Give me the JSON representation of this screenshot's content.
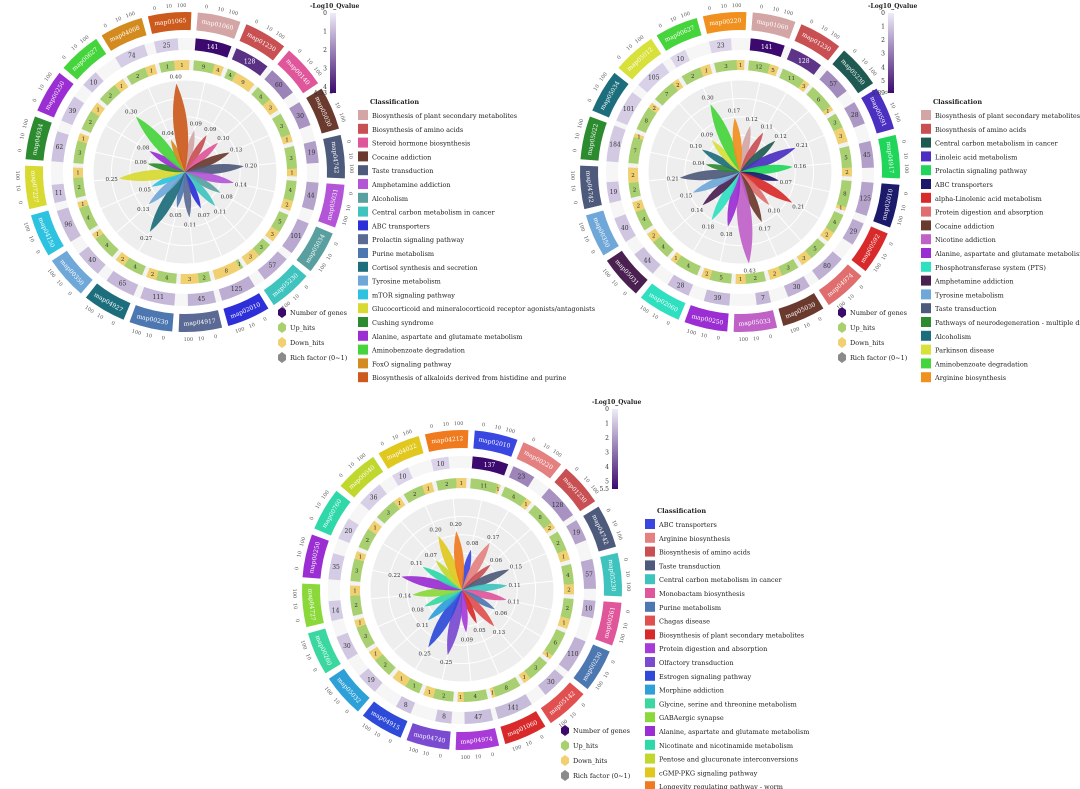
{
  "chart_data": [
    {
      "type": "circos",
      "colorbar": {
        "title": "-Log10_Qvalue",
        "ticks": [
          "0",
          "1",
          "2",
          "3",
          "4",
          "4.33"
        ],
        "min": 0,
        "max": 4.33
      },
      "legend_title": "Classification",
      "classes": [
        {
          "name": "Biosynthesis of plant secondary metabolites",
          "color": "#d3a5a5"
        },
        {
          "name": "Biosynthesis of amino acids",
          "color": "#c84f52"
        },
        {
          "name": "Steroid hormone biosynthesis",
          "color": "#e0569a"
        },
        {
          "name": "Cocaine addiction",
          "color": "#6b3a2e"
        },
        {
          "name": "Taste transduction",
          "color": "#4d5a7b"
        },
        {
          "name": "Amphetamine addiction",
          "color": "#b455d8"
        },
        {
          "name": "Alcoholism",
          "color": "#5a9f9f"
        },
        {
          "name": "Central carbon metabolism in cancer",
          "color": "#3ec3be"
        },
        {
          "name": "ABC transporters",
          "color": "#2d2fd8"
        },
        {
          "name": "Prolactin signaling pathway",
          "color": "#5b6a94"
        },
        {
          "name": "Purine metabolism",
          "color": "#4d77b0"
        },
        {
          "name": "Cortisol synthesis and secretion",
          "color": "#1d6e7d"
        },
        {
          "name": "Tyrosine metabolism",
          "color": "#6fa7d8"
        },
        {
          "name": "mTOR signaling pathway",
          "color": "#2cc2e0"
        },
        {
          "name": "Glucocorticoid and mineralocorticoid receptor agonists/antagonists",
          "color": "#d8d931"
        },
        {
          "name": "Cushing syndrome",
          "color": "#2c8a2f"
        },
        {
          "name": "Alanine, aspartate and glutamate metabolism",
          "color": "#9a2ed2"
        },
        {
          "name": "Aminobenzoate degradation",
          "color": "#45d43b"
        },
        {
          "name": "FoxO signaling pathway",
          "color": "#d38a1f"
        },
        {
          "name": "Biosynthesis of alkaloids derived from histidine and purine",
          "color": "#cc5a1d"
        }
      ],
      "sectors": [
        {
          "id": "map01060",
          "genes": 141,
          "up": 9,
          "down": 4,
          "rich": 0.09,
          "q": 4.33
        },
        {
          "id": "map01230",
          "genes": 128,
          "up": 4,
          "down": 9,
          "rich": 0.09,
          "q": 3.6
        },
        {
          "id": "map00140",
          "genes": 60,
          "up": 4,
          "down": 3,
          "rich": 0.1,
          "q": 2.0
        },
        {
          "id": "map05030",
          "genes": 30,
          "up": 3,
          "down": 1,
          "rich": 0.13,
          "q": 1.7
        },
        {
          "id": "map04742",
          "genes": 19,
          "up": 3,
          "down": 1,
          "rich": 0.2,
          "q": 1.5
        },
        {
          "id": "map05031",
          "genes": 44,
          "up": 4,
          "down": 2,
          "rich": 0.14,
          "q": 1.4
        },
        {
          "id": "map05034",
          "genes": 101,
          "up": 5,
          "down": 3,
          "rich": 0.08,
          "q": 1.3
        },
        {
          "id": "map05230",
          "genes": 57,
          "up": 3,
          "down": 3,
          "rich": 0.11,
          "q": 1.2
        },
        {
          "id": "map02010",
          "genes": 125,
          "up": 1,
          "down": 8,
          "rich": 0.07,
          "q": 1.2
        },
        {
          "id": "map04917",
          "genes": 45,
          "up": 2,
          "down": 3,
          "rich": 0.11,
          "q": 1.1
        },
        {
          "id": "map00230",
          "genes": 111,
          "up": 4,
          "down": 2,
          "rich": 0.05,
          "q": 1.0
        },
        {
          "id": "map04927",
          "genes": 65,
          "up": 4,
          "down": 2,
          "rich": 0.27,
          "q": 1.0
        },
        {
          "id": "map00350",
          "genes": 40,
          "up": 4,
          "down": 1,
          "rich": 0.13,
          "q": 0.9
        },
        {
          "id": "map04150",
          "genes": 96,
          "up": 4,
          "down": 1,
          "rich": 0.05,
          "q": 0.9
        },
        {
          "id": "map07227",
          "genes": 11,
          "up": 2,
          "down": 1,
          "rich": 0.25,
          "q": 0.8
        },
        {
          "id": "map04934",
          "genes": 62,
          "up": 3,
          "down": 1,
          "rich": 0.06,
          "q": 0.8
        },
        {
          "id": "map00250",
          "genes": 39,
          "up": 2,
          "down": 1,
          "rich": 0.08,
          "q": 0.7
        },
        {
          "id": "map00627",
          "genes": 10,
          "up": 2,
          "down": 1,
          "rich": 0.3,
          "q": 0.7
        },
        {
          "id": "map04068",
          "genes": 74,
          "up": 2,
          "down": 1,
          "rich": 0.04,
          "q": 0.6
        },
        {
          "id": "map01065",
          "genes": 25,
          "up": 1,
          "down": 1,
          "rich": 0.4,
          "q": 0.6
        }
      ]
    },
    {
      "type": "circos",
      "colorbar": {
        "title": "-Log10_Qvalue",
        "ticks": [
          "0",
          "1",
          "2",
          "3",
          "4",
          "5",
          "5.89"
        ],
        "min": 0,
        "max": 5.89
      },
      "legend_title": "Classification",
      "classes": [
        {
          "name": "Biosynthesis of plant secondary metabolites",
          "color": "#d3a5a5"
        },
        {
          "name": "Biosynthesis of amino acids",
          "color": "#c84f52"
        },
        {
          "name": "Central carbon metabolism in cancer",
          "color": "#1e5a52"
        },
        {
          "name": "Linoleic acid metabolism",
          "color": "#4a2fc0"
        },
        {
          "name": "Prolactin signaling pathway",
          "color": "#1fd65a"
        },
        {
          "name": "ABC transporters",
          "color": "#1b1a6b"
        },
        {
          "name": "alpha-Linolenic acid metabolism",
          "color": "#d82a2a"
        },
        {
          "name": "Protein digestion and absorption",
          "color": "#e06e6e"
        },
        {
          "name": "Cocaine addiction",
          "color": "#6b3a2e"
        },
        {
          "name": "Nicotine addiction",
          "color": "#c061c8"
        },
        {
          "name": "Alanine, aspartate and glutamate metabolism",
          "color": "#9a2ed2"
        },
        {
          "name": "Phosphotransferase system (PTS)",
          "color": "#2fe0c0"
        },
        {
          "name": "Amphetamine addiction",
          "color": "#4a2050"
        },
        {
          "name": "Tyrosine metabolism",
          "color": "#6fa7d8"
        },
        {
          "name": "Taste transduction",
          "color": "#4d5a7b"
        },
        {
          "name": "Pathways of neurodegeneration - multiple diseases",
          "color": "#2c8a2f"
        },
        {
          "name": "Alcoholism",
          "color": "#1d6e7d"
        },
        {
          "name": "Parkinson disease",
          "color": "#d8e03a"
        },
        {
          "name": "Aminobenzoate degradation",
          "color": "#45d43b"
        },
        {
          "name": "Arginine biosynthesis",
          "color": "#f0901e"
        }
      ],
      "sectors": [
        {
          "id": "map01060",
          "genes": 141,
          "up": 12,
          "down": 5,
          "rich": 0.12,
          "q": 5.89
        },
        {
          "id": "map01230",
          "genes": 128,
          "up": 11,
          "down": 3,
          "rich": 0.11,
          "q": 4.8
        },
        {
          "id": "map05230",
          "genes": 57,
          "up": 6,
          "down": 1,
          "rich": 0.12,
          "q": 2.5
        },
        {
          "id": "map00591",
          "genes": 28,
          "up": 3,
          "down": 3,
          "rich": 0.21,
          "q": 2.2
        },
        {
          "id": "map04917",
          "genes": 45,
          "up": 5,
          "down": 2,
          "rich": 0.16,
          "q": 2.0
        },
        {
          "id": "map02010",
          "genes": 125,
          "up": 8,
          "down": 1,
          "rich": 0.07,
          "q": 1.9
        },
        {
          "id": "map00592",
          "genes": 29,
          "up": 4,
          "down": 2,
          "rich": 0.21,
          "q": 1.7
        },
        {
          "id": "map04974",
          "genes": 80,
          "up": 5,
          "down": 3,
          "rich": 0.1,
          "q": 1.6
        },
        {
          "id": "map05030",
          "genes": 30,
          "up": 3,
          "down": 2,
          "rich": 0.17,
          "q": 1.5
        },
        {
          "id": "map05033",
          "genes": 7,
          "up": 2,
          "down": 1,
          "rich": 0.43,
          "q": 1.4
        },
        {
          "id": "map00250",
          "genes": 39,
          "up": 5,
          "down": 2,
          "rich": 0.18,
          "q": 1.3
        },
        {
          "id": "map02060",
          "genes": 28,
          "up": 4,
          "down": 1,
          "rich": 0.18,
          "q": 1.2
        },
        {
          "id": "map05031",
          "genes": 44,
          "up": 4,
          "down": 2,
          "rich": 0.14,
          "q": 1.1
        },
        {
          "id": "map00350",
          "genes": 40,
          "up": 4,
          "down": 2,
          "rich": 0.15,
          "q": 1.0
        },
        {
          "id": "map04742",
          "genes": 19,
          "up": 2,
          "down": 2,
          "rich": 0.21,
          "q": 1.0
        },
        {
          "id": "map05022",
          "genes": 184,
          "up": 7,
          "down": 1,
          "rich": 0.04,
          "q": 0.9
        },
        {
          "id": "map05034",
          "genes": 101,
          "up": 8,
          "down": 2,
          "rich": 0.1,
          "q": 0.8
        },
        {
          "id": "map05012",
          "genes": 105,
          "up": 7,
          "down": 2,
          "rich": 0.09,
          "q": 0.7
        },
        {
          "id": "map00627",
          "genes": 10,
          "up": 2,
          "down": 1,
          "rich": 0.3,
          "q": 0.6
        },
        {
          "id": "map00220",
          "genes": 23,
          "up": 3,
          "down": 1,
          "rich": 0.17,
          "q": 0.6
        }
      ]
    },
    {
      "type": "circos",
      "colorbar": {
        "title": "-Log10_Qvalue",
        "ticks": [
          "0",
          "1",
          "2",
          "3",
          "4",
          "5",
          "5.5"
        ],
        "min": 0,
        "max": 5.5
      },
      "legend_title": "Classification",
      "classes": [
        {
          "name": "ABC transporters",
          "color": "#3a46e0"
        },
        {
          "name": "Arginine biosynthesis",
          "color": "#e48080"
        },
        {
          "name": "Biosynthesis of amino acids",
          "color": "#c84f52"
        },
        {
          "name": "Taste transduction",
          "color": "#4d5a7b"
        },
        {
          "name": "Central carbon metabolism in cancer",
          "color": "#3ec3be"
        },
        {
          "name": "Monobactam biosynthesis",
          "color": "#e0569a"
        },
        {
          "name": "Purine metabolism",
          "color": "#4d77b0"
        },
        {
          "name": "Chagas disease",
          "color": "#e05050"
        },
        {
          "name": "Biosynthesis of plant secondary metabolites",
          "color": "#d82a2a"
        },
        {
          "name": "Protein digestion and absorption",
          "color": "#a83ad8"
        },
        {
          "name": "Olfactory transduction",
          "color": "#7a4ad0"
        },
        {
          "name": "Estrogen signaling pathway",
          "color": "#2e4ad8"
        },
        {
          "name": "Morphine addiction",
          "color": "#2ea0d8"
        },
        {
          "name": "Glycine, serine and threonine metabolism",
          "color": "#3ad8a0"
        },
        {
          "name": "GABAergic synapse",
          "color": "#8ad83a"
        },
        {
          "name": "Alanine, aspartate and glutamate metabolism",
          "color": "#9a2ed2"
        },
        {
          "name": "Nicotinate and nicotinamide metabolism",
          "color": "#2ed8a8"
        },
        {
          "name": "Pentose and glucuronate interconversions",
          "color": "#c0d82e"
        },
        {
          "name": "cGMP-PKG signaling pathway",
          "color": "#e0c81e"
        },
        {
          "name": "Longevity regulating pathway - worm",
          "color": "#f07a1e"
        }
      ],
      "sectors": [
        {
          "id": "map02010",
          "genes": 137,
          "up": 11,
          "down": 1,
          "rich": 0.08,
          "q": 5.5
        },
        {
          "id": "map00220",
          "genes": 23,
          "up": 4,
          "down": 1,
          "rich": 0.17,
          "q": 2.5
        },
        {
          "id": "map01230",
          "genes": 128,
          "up": 8,
          "down": 2,
          "rich": 0.06,
          "q": 2.2
        },
        {
          "id": "map04742",
          "genes": 19,
          "up": 2,
          "down": 1,
          "rich": 0.15,
          "q": 1.8
        },
        {
          "id": "map05230",
          "genes": 57,
          "up": 4,
          "down": 2,
          "rich": 0.11,
          "q": 1.6
        },
        {
          "id": "map00261",
          "genes": 10,
          "up": 2,
          "down": 1,
          "rich": 0.11,
          "q": 1.5
        },
        {
          "id": "map00230",
          "genes": 110,
          "up": 6,
          "down": 1,
          "rich": 0.06,
          "q": 1.4
        },
        {
          "id": "map05142",
          "genes": 30,
          "up": 3,
          "down": 1,
          "rich": 0.13,
          "q": 1.3
        },
        {
          "id": "map01060",
          "genes": 141,
          "up": 8,
          "down": 1,
          "rich": 0.05,
          "q": 1.2
        },
        {
          "id": "map04974",
          "genes": 47,
          "up": 4,
          "down": 1,
          "rich": 0.09,
          "q": 1.1
        },
        {
          "id": "map04740",
          "genes": 8,
          "up": 2,
          "down": 1,
          "rich": 0.25,
          "q": 1.0
        },
        {
          "id": "map04915",
          "genes": 8,
          "up": 1,
          "down": 1,
          "rich": 0.25,
          "q": 1.0
        },
        {
          "id": "map05032",
          "genes": 19,
          "up": 2,
          "down": 1,
          "rich": 0.11,
          "q": 0.9
        },
        {
          "id": "map00260",
          "genes": 30,
          "up": 3,
          "down": 1,
          "rich": 0.08,
          "q": 0.9
        },
        {
          "id": "map04727",
          "genes": 14,
          "up": 2,
          "down": 1,
          "rich": 0.14,
          "q": 0.8
        },
        {
          "id": "map00250",
          "genes": 35,
          "up": 3,
          "down": 1,
          "rich": 0.22,
          "q": 0.8
        },
        {
          "id": "map00760",
          "genes": 20,
          "up": 2,
          "down": 1,
          "rich": 0.11,
          "q": 0.7
        },
        {
          "id": "map00040",
          "genes": 36,
          "up": 3,
          "down": 1,
          "rich": 0.07,
          "q": 0.7
        },
        {
          "id": "map04022",
          "genes": 10,
          "up": 2,
          "down": 1,
          "rich": 0.2,
          "q": 0.6
        },
        {
          "id": "map04212",
          "genes": 10,
          "up": 2,
          "down": 1,
          "rich": 0.2,
          "q": 0.6
        }
      ]
    }
  ],
  "track_legend": [
    {
      "label": "Number of genes",
      "color": "#3b0a6a",
      "shape": "hex"
    },
    {
      "label": "Up_hits",
      "color": "#a8d070",
      "shape": "hex"
    },
    {
      "label": "Down_hits",
      "color": "#f0d070",
      "shape": "hex"
    },
    {
      "label": "Rich factor (0~1)",
      "color": "#8a8a8a",
      "shape": "hex"
    }
  ],
  "scale_labels": {
    "ticks": [
      "0",
      "10",
      "100"
    ]
  }
}
